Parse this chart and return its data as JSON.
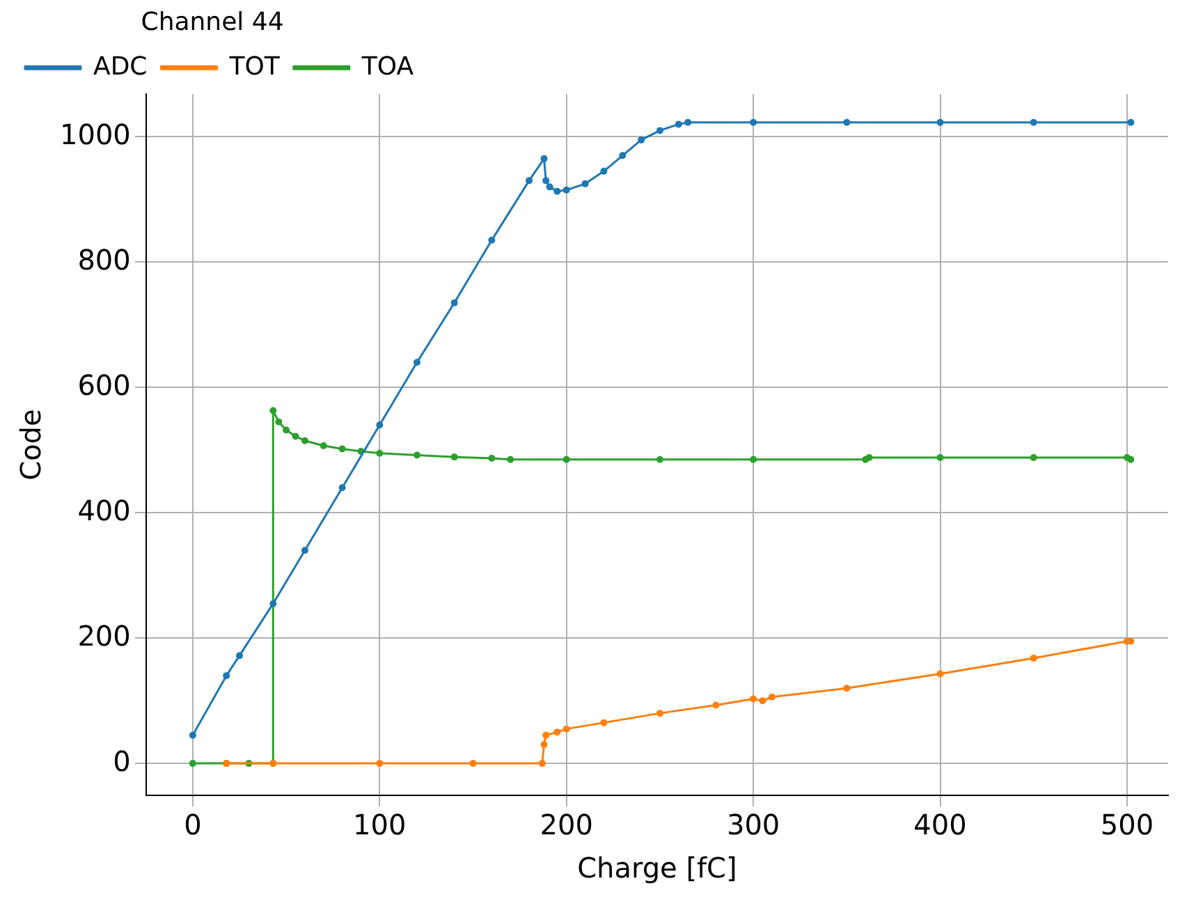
{
  "chart_data": {
    "type": "line",
    "xlabel": "Charge [fC]",
    "ylabel": "Code",
    "legend_title": "Channel 44",
    "legend": "top left",
    "grid": true,
    "marker": "circle",
    "line_style": "solid",
    "xlim": [
      -25,
      522
    ],
    "xticks": [
      0,
      100,
      200,
      300,
      400,
      500
    ],
    "ylim": [
      -51,
      1068
    ],
    "yticks": [
      0,
      200,
      400,
      600,
      800,
      1000
    ],
    "series": [
      {
        "name": "ADC",
        "color": "#1f77b4",
        "x": [
          0,
          18,
          25,
          43,
          60,
          80,
          100,
          120,
          140,
          160,
          180,
          188,
          189,
          191,
          195,
          200,
          210,
          220,
          230,
          240,
          250,
          260,
          265,
          300,
          350,
          400,
          450,
          502
        ],
        "values": [
          45,
          140,
          172,
          255,
          340,
          440,
          540,
          640,
          735,
          835,
          930,
          965,
          930,
          920,
          913,
          915,
          925,
          945,
          970,
          995,
          1010,
          1020,
          1023,
          1023,
          1023,
          1023,
          1023,
          1023
        ]
      },
      {
        "name": "TOT",
        "color": "#ff7f0e",
        "x": [
          18,
          43,
          100,
          150,
          187,
          188,
          189,
          195,
          200,
          220,
          250,
          280,
          300,
          305,
          310,
          350,
          400,
          450,
          500,
          502
        ],
        "values": [
          0,
          0,
          0,
          0,
          0,
          30,
          45,
          50,
          55,
          65,
          80,
          93,
          103,
          100,
          106,
          120,
          143,
          168,
          195,
          195
        ]
      },
      {
        "name": "TOA",
        "color": "#2ca02c",
        "x": [
          0,
          18,
          30,
          43,
          43,
          46,
          50,
          55,
          60,
          70,
          80,
          90,
          100,
          120,
          140,
          160,
          170,
          200,
          250,
          300,
          360,
          362,
          400,
          450,
          500,
          502
        ],
        "values": [
          0,
          0,
          0,
          0,
          563,
          545,
          532,
          522,
          515,
          507,
          502,
          498,
          495,
          492,
          489,
          487,
          485,
          485,
          485,
          485,
          485,
          488,
          488,
          488,
          488,
          485
        ]
      }
    ]
  }
}
